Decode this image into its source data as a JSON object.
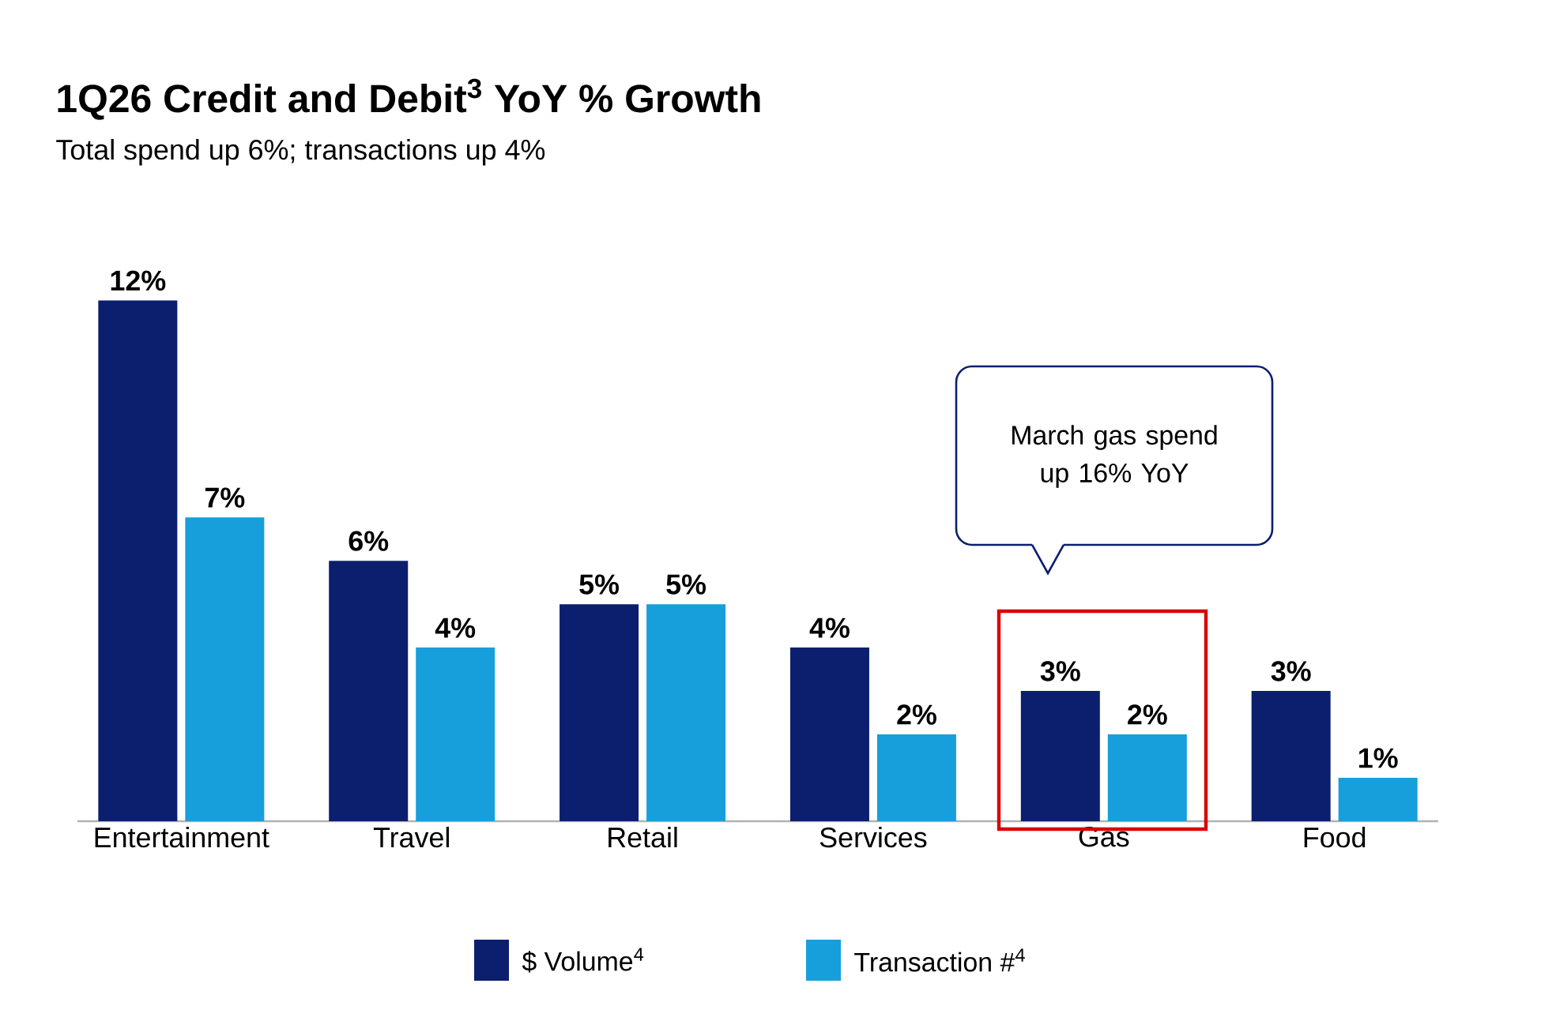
{
  "chart_data": {
    "type": "bar",
    "title": "1Q26 Credit and Debit$^{3}$ YoY % Growth",
    "subtitle": "Total spend up 6%; transactions up 4%",
    "categories": [
      "Entertainment",
      "Travel",
      "Retail",
      "Services",
      "Gas",
      "Food"
    ],
    "series": [
      {
        "name": "$ Volume$^{4}$",
        "color": "#0b1f6e",
        "values": [
          12,
          6,
          5,
          4,
          3,
          3
        ],
        "value_labels": [
          "12%",
          "6%",
          "5%",
          "4%",
          "3%",
          "3%"
        ]
      },
      {
        "name": "Transaction #$^{4}$",
        "color": "#169fdb",
        "values": [
          7,
          4,
          5,
          2,
          2,
          1
        ],
        "value_labels": [
          "7%",
          "4%",
          "5%",
          "2%",
          "2%",
          "1%"
        ]
      }
    ],
    "legend": "bottom",
    "annotations": [
      "March gas spend up 16% YoY"
    ]
  }
}
